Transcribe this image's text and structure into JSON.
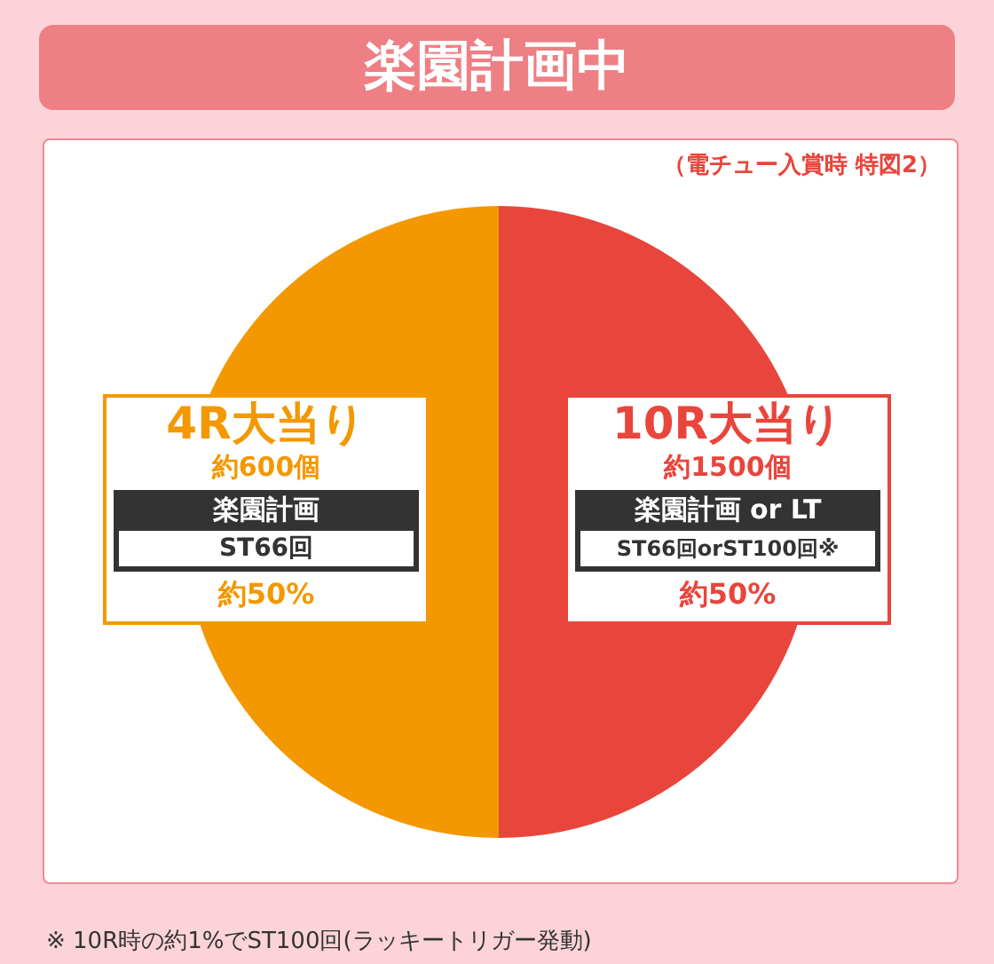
{
  "chart_data": {
    "type": "pie",
    "title": "楽園計画中",
    "subtitle": "（電チュー入賞時 特図2）",
    "categories": [
      "4R大当り",
      "10R大当り"
    ],
    "values": [
      50,
      50
    ],
    "colors": [
      "#f39800",
      "#e8453c"
    ],
    "value_labels": [
      "約50%",
      "約50%"
    ],
    "annotations": [
      "約600個",
      "楽園計画",
      "ST66回",
      "約1500個",
      "楽園計画 or LT",
      "ST66回orST100回※",
      "※ 10R時の約1%でST100回(ラッキートリガー発動)"
    ]
  }
}
